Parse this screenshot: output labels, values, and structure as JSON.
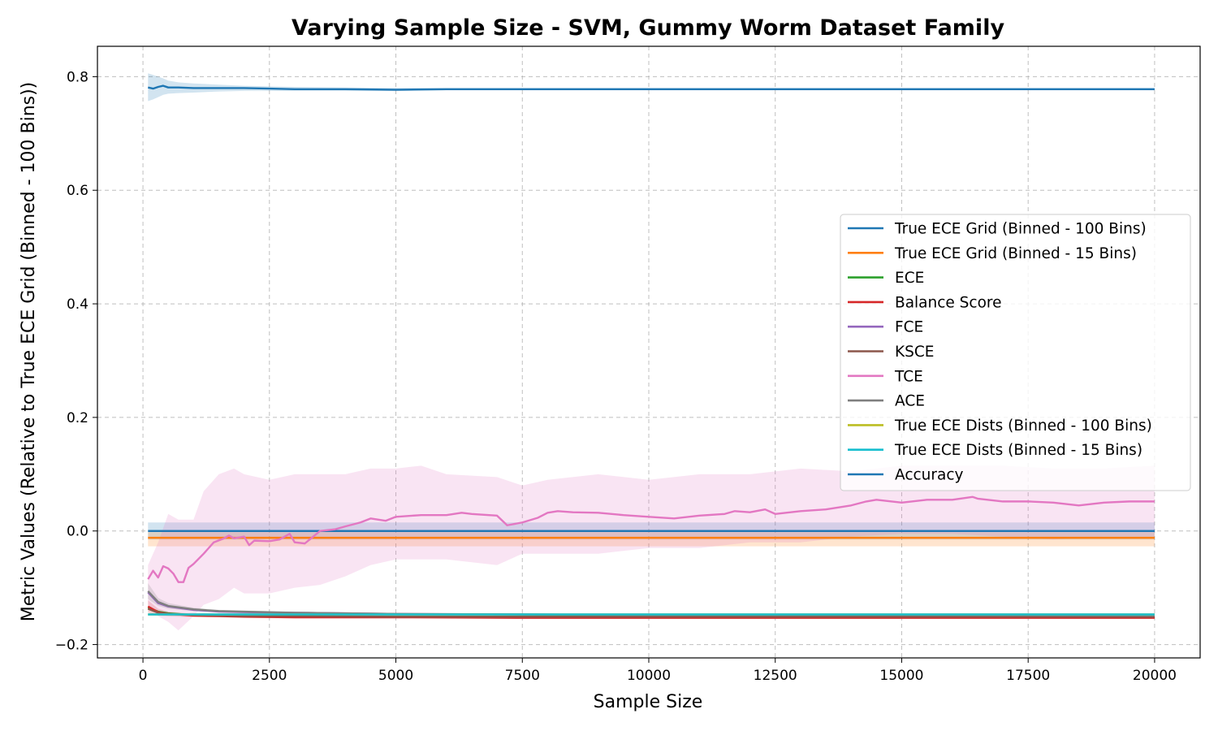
{
  "chart_data": {
    "type": "line",
    "title": "Varying Sample Size - SVM, Gummy Worm Dataset Family",
    "xlabel": "Sample Size",
    "ylabel": "Metric Values (Relative to True ECE Grid (Binned - 100 Bins))",
    "xlim": [
      -900,
      20900
    ],
    "ylim": [
      -0.2235,
      0.8535
    ],
    "xticks": [
      0,
      2500,
      5000,
      7500,
      10000,
      12500,
      15000,
      17500,
      20000
    ],
    "yticks": [
      -0.2,
      0.0,
      0.2,
      0.4,
      0.6,
      0.8
    ],
    "ytick_labels": [
      "−0.2",
      "0.0",
      "0.2",
      "0.4",
      "0.6",
      "0.8"
    ],
    "grid": true,
    "legend_position": "center-right",
    "series": [
      {
        "name": "True ECE Grid (Binned - 100 Bins)",
        "color": "#1f77b4",
        "x": [
          100,
          20000
        ],
        "y": [
          0.0,
          0.0
        ],
        "band_upper": [
          0.015,
          0.015
        ],
        "band_lower": [
          -0.015,
          -0.015
        ]
      },
      {
        "name": "True ECE Grid (Binned - 15 Bins)",
        "color": "#ff7f0e",
        "x": [
          100,
          20000
        ],
        "y": [
          -0.012,
          -0.012
        ],
        "band_upper": [
          -0.002,
          -0.002
        ],
        "band_lower": [
          -0.027,
          -0.027
        ]
      },
      {
        "name": "ECE",
        "color": "#2ca02c",
        "x": [
          100,
          300,
          500,
          1000,
          1500,
          2000,
          3000,
          5000,
          7500,
          10000,
          15000,
          20000
        ],
        "y": [
          -0.135,
          -0.142,
          -0.145,
          -0.148,
          -0.149,
          -0.15,
          -0.151,
          -0.151,
          -0.151,
          -0.151,
          -0.151,
          -0.151
        ]
      },
      {
        "name": "Balance Score",
        "color": "#d62728",
        "x": [
          100,
          300,
          500,
          1000,
          1500,
          2000,
          3000,
          5000,
          7500,
          10000,
          15000,
          20000
        ],
        "y": [
          -0.133,
          -0.143,
          -0.146,
          -0.149,
          -0.15,
          -0.151,
          -0.152,
          -0.152,
          -0.153,
          -0.153,
          -0.153,
          -0.153
        ],
        "band_upper": [
          -0.122,
          -0.137,
          -0.142,
          -0.146,
          -0.148,
          -0.149,
          -0.15,
          -0.151,
          -0.152,
          -0.152,
          -0.152,
          -0.152
        ],
        "band_lower": [
          -0.144,
          -0.149,
          -0.15,
          -0.152,
          -0.152,
          -0.153,
          -0.154,
          -0.154,
          -0.154,
          -0.154,
          -0.154,
          -0.154
        ]
      },
      {
        "name": "FCE",
        "color": "#9467bd",
        "x": [
          100,
          300,
          500,
          1000,
          1500,
          2000,
          3000,
          5000,
          7500,
          10000,
          15000,
          20000
        ],
        "y": [
          -0.108,
          -0.127,
          -0.133,
          -0.139,
          -0.142,
          -0.143,
          -0.144,
          -0.146,
          -0.147,
          -0.148,
          -0.148,
          -0.149
        ]
      },
      {
        "name": "KSCE",
        "color": "#8c564b",
        "x": [
          100,
          300,
          500,
          1000,
          1500,
          2000,
          3000,
          5000,
          7500,
          10000,
          15000,
          20000
        ],
        "y": [
          -0.137,
          -0.144,
          -0.146,
          -0.148,
          -0.149,
          -0.15,
          -0.15,
          -0.151,
          -0.151,
          -0.151,
          -0.151,
          -0.151
        ]
      },
      {
        "name": "TCE",
        "color": "#e377c2",
        "x": [
          100,
          200,
          300,
          400,
          500,
          600,
          700,
          800,
          900,
          1000,
          1200,
          1400,
          1600,
          1700,
          1800,
          2000,
          2100,
          2200,
          2500,
          2700,
          2900,
          3000,
          3200,
          3500,
          3800,
          4000,
          4300,
          4500,
          4800,
          5000,
          5500,
          6000,
          6300,
          6500,
          7000,
          7200,
          7500,
          7800,
          8000,
          8200,
          8500,
          9000,
          9500,
          10000,
          10500,
          11000,
          11500,
          11700,
          12000,
          12300,
          12500,
          13000,
          13500,
          14000,
          14300,
          14500,
          15000,
          15500,
          16000,
          16400,
          16500,
          17000,
          17500,
          18000,
          18500,
          19000,
          19500,
          20000
        ],
        "y": [
          -0.085,
          -0.07,
          -0.082,
          -0.062,
          -0.066,
          -0.075,
          -0.09,
          -0.09,
          -0.065,
          -0.058,
          -0.04,
          -0.02,
          -0.013,
          -0.008,
          -0.013,
          -0.01,
          -0.025,
          -0.017,
          -0.018,
          -0.015,
          -0.005,
          -0.02,
          -0.022,
          0.0,
          0.003,
          0.008,
          0.015,
          0.022,
          0.018,
          0.025,
          0.028,
          0.028,
          0.032,
          0.03,
          0.027,
          0.01,
          0.015,
          0.023,
          0.032,
          0.035,
          0.033,
          0.032,
          0.028,
          0.025,
          0.022,
          0.027,
          0.03,
          0.035,
          0.033,
          0.038,
          0.03,
          0.035,
          0.038,
          0.045,
          0.052,
          0.055,
          0.05,
          0.055,
          0.055,
          0.06,
          0.057,
          0.052,
          0.052,
          0.05,
          0.045,
          0.05,
          0.052,
          0.052
        ],
        "band_x": [
          100,
          300,
          500,
          700,
          1000,
          1200,
          1500,
          1800,
          2000,
          2500,
          3000,
          3500,
          4000,
          4500,
          5000,
          5500,
          6000,
          7000,
          7500,
          8000,
          9000,
          10000,
          11000,
          12000,
          13000,
          14000,
          15000,
          16000,
          17000,
          18000,
          19000,
          20000
        ],
        "band_upper": [
          -0.06,
          -0.02,
          0.03,
          0.02,
          0.02,
          0.07,
          0.1,
          0.11,
          0.1,
          0.09,
          0.1,
          0.1,
          0.1,
          0.11,
          0.11,
          0.115,
          0.1,
          0.095,
          0.08,
          0.09,
          0.1,
          0.09,
          0.1,
          0.1,
          0.11,
          0.105,
          0.115,
          0.115,
          0.115,
          0.11,
          0.11,
          0.115
        ],
        "band_lower": [
          -0.13,
          -0.15,
          -0.16,
          -0.175,
          -0.15,
          -0.13,
          -0.12,
          -0.1,
          -0.11,
          -0.11,
          -0.1,
          -0.095,
          -0.08,
          -0.06,
          -0.05,
          -0.05,
          -0.05,
          -0.06,
          -0.04,
          -0.04,
          -0.04,
          -0.03,
          -0.03,
          -0.02,
          -0.02,
          -0.01,
          -0.005,
          -0.005,
          -0.01,
          -0.015,
          -0.01,
          -0.01
        ]
      },
      {
        "name": "ACE",
        "color": "#7f7f7f",
        "x": [
          100,
          300,
          500,
          1000,
          1500,
          2000,
          3000,
          5000,
          7500,
          10000,
          15000,
          20000
        ],
        "y": [
          -0.106,
          -0.125,
          -0.132,
          -0.138,
          -0.141,
          -0.142,
          -0.144,
          -0.146,
          -0.147,
          -0.148,
          -0.148,
          -0.149
        ],
        "band_upper": [
          -0.092,
          -0.118,
          -0.127,
          -0.135,
          -0.139,
          -0.14,
          -0.142,
          -0.145,
          -0.146,
          -0.147,
          -0.147,
          -0.148
        ],
        "band_lower": [
          -0.12,
          -0.132,
          -0.137,
          -0.141,
          -0.143,
          -0.144,
          -0.146,
          -0.147,
          -0.148,
          -0.149,
          -0.149,
          -0.15
        ]
      },
      {
        "name": "True ECE Dists (Binned - 100 Bins)",
        "color": "#bcbd22",
        "x": [
          100,
          20000
        ],
        "y": [
          -0.147,
          -0.147
        ]
      },
      {
        "name": "True ECE Dists (Binned - 15 Bins)",
        "color": "#17becf",
        "x": [
          100,
          20000
        ],
        "y": [
          -0.147,
          -0.147
        ]
      },
      {
        "name": "Accuracy",
        "color": "#1f77b4",
        "x": [
          100,
          200,
          300,
          400,
          500,
          700,
          1000,
          1500,
          2000,
          2500,
          3000,
          4000,
          5000,
          6000,
          7500,
          10000,
          15000,
          20000
        ],
        "y": [
          0.781,
          0.779,
          0.782,
          0.784,
          0.781,
          0.781,
          0.78,
          0.78,
          0.78,
          0.779,
          0.778,
          0.778,
          0.777,
          0.778,
          0.778,
          0.778,
          0.778,
          0.778
        ],
        "band_upper": [
          0.806,
          0.803,
          0.8,
          0.797,
          0.793,
          0.79,
          0.788,
          0.786,
          0.784,
          0.783,
          0.782,
          0.781,
          0.78,
          0.78,
          0.78,
          0.78,
          0.78,
          0.78
        ],
        "band_lower": [
          0.757,
          0.76,
          0.764,
          0.768,
          0.77,
          0.771,
          0.772,
          0.774,
          0.775,
          0.775,
          0.775,
          0.775,
          0.775,
          0.776,
          0.776,
          0.776,
          0.776,
          0.776
        ]
      }
    ]
  }
}
